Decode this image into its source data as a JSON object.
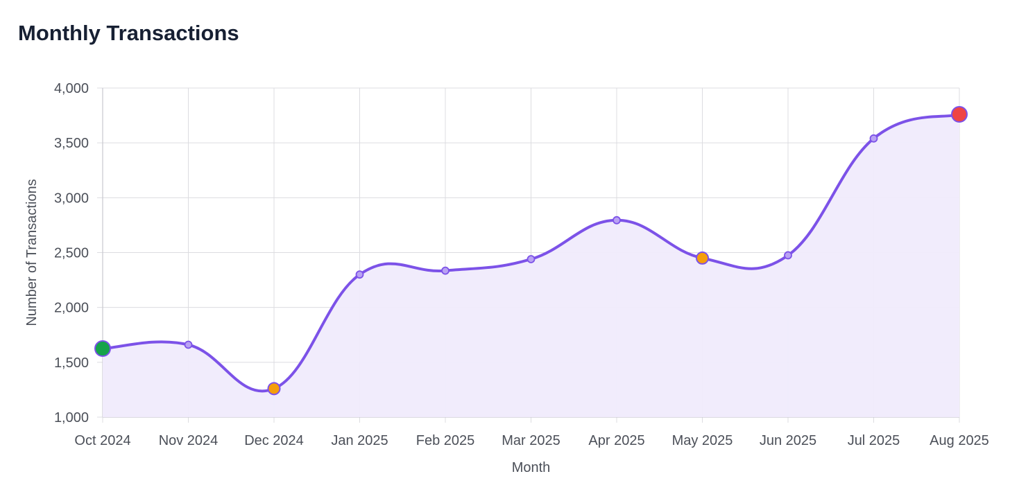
{
  "chart_data": {
    "type": "line",
    "title": "Monthly Transactions",
    "xlabel": "Month",
    "ylabel": "Number of Transactions",
    "categories": [
      "Oct 2024",
      "Nov 2024",
      "Dec 2024",
      "Jan 2025",
      "Feb 2025",
      "Mar 2025",
      "Apr 2025",
      "May 2025",
      "Jun 2025",
      "Jul 2025",
      "Aug 2025"
    ],
    "series": [
      {
        "values": [
          1625,
          1660,
          1260,
          2300,
          2335,
          2440,
          2795,
          2450,
          2475,
          3540,
          3760
        ]
      }
    ],
    "ylim": [
      1000,
      4000
    ],
    "yticks": [
      1000,
      1500,
      2000,
      2500,
      3000,
      3500,
      4000
    ],
    "ytick_labels": [
      "1,000",
      "1,500",
      "2,000",
      "2,500",
      "3,000",
      "3,500",
      "4,000"
    ],
    "grid": true,
    "smooth": true,
    "area_fill": true,
    "colors": {
      "line": "#7c52e8",
      "fill": "#f0ebfc",
      "grid": "#dcdce0",
      "point_fill": "#b9a2f3",
      "lowest": "#16a34a",
      "highest": "#ef4444",
      "dip": "#f59e0b"
    },
    "highlights": [
      {
        "index": 0,
        "kind": "start",
        "color": "#16a34a"
      },
      {
        "index": 2,
        "kind": "dip",
        "color": "#f59e0b"
      },
      {
        "index": 7,
        "kind": "dip",
        "color": "#f59e0b"
      },
      {
        "index": 10,
        "kind": "peak",
        "color": "#ef4444"
      }
    ]
  }
}
